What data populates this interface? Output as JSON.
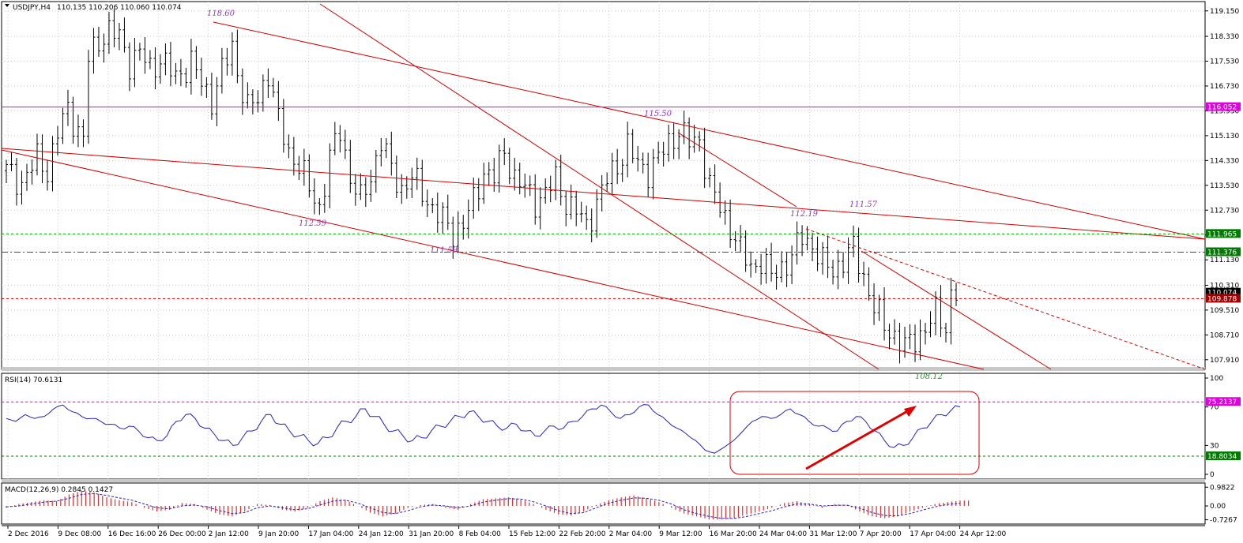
{
  "title": {
    "symbol": "USDJPY,H4",
    "ohlc": "110.135 110.206 110.060 110.074"
  },
  "colors": {
    "bar": "#000000",
    "channel": "#d40000",
    "magenta": "#e100e1",
    "green_dash": "#00a000",
    "red_dash": "#c00000",
    "rsi": "#2222c0",
    "macd_hist": "#e03030",
    "signal": "#2222c0",
    "annotation": "#9932cc"
  },
  "chart_data": [
    {
      "type": "line",
      "title": "USDJPY,H4",
      "ylim": [
        107.6,
        119.45
      ],
      "yticks": [
        "119.150",
        "118.330",
        "117.530",
        "116.730",
        "115.930",
        "115.130",
        "114.330",
        "113.530",
        "112.730",
        "111.930",
        "111.130",
        "110.310",
        "109.510",
        "108.710",
        "107.910"
      ],
      "xticks": [
        "2 Dec 2016",
        "9 Dec 08:00",
        "16 Dec 16:00",
        "26 Dec 00:00",
        "2 Jan 12:00",
        "9 Jan 20:00",
        "17 Jan 04:00",
        "24 Jan 12:00",
        "31 Jan 20:00",
        "8 Feb 04:00",
        "15 Feb 12:00",
        "22 Feb 20:00",
        "2 Mar 04:00",
        "9 Mar 12:00",
        "16 Mar 20:00",
        "24 Mar 04:00",
        "31 Mar 12:00",
        "7 Apr 20:00",
        "17 Apr 04:00",
        "24 Apr 12:00"
      ],
      "close_path": [
        [
          0,
          114.0
        ],
        [
          3,
          113.6
        ],
        [
          6,
          114.4
        ],
        [
          8,
          114.0
        ],
        [
          10,
          115.2
        ],
        [
          12,
          116.0
        ],
        [
          14,
          115.3
        ],
        [
          15,
          115.0
        ],
        [
          16,
          117.6
        ],
        [
          18,
          118.2
        ],
        [
          20,
          118.5
        ],
        [
          22,
          118.3
        ],
        [
          24,
          117.5
        ],
        [
          26,
          117.8
        ],
        [
          28,
          117.3
        ],
        [
          30,
          117.6
        ],
        [
          33,
          117.0
        ],
        [
          36,
          117.5
        ],
        [
          38,
          116.8
        ],
        [
          40,
          116.3
        ],
        [
          42,
          117.2
        ],
        [
          44,
          118.0
        ],
        [
          45,
          117.2
        ],
        [
          47,
          116.0
        ],
        [
          49,
          116.3
        ],
        [
          51,
          117.2
        ],
        [
          53,
          115.6
        ],
        [
          55,
          114.6
        ],
        [
          57,
          114.2
        ],
        [
          59,
          113.4
        ],
        [
          61,
          112.8
        ],
        [
          63,
          114.4
        ],
        [
          65,
          115.3
        ],
        [
          67,
          113.8
        ],
        [
          69,
          113.0
        ],
        [
          71,
          113.8
        ],
        [
          73,
          115.0
        ],
        [
          75,
          114.0
        ],
        [
          77,
          113.4
        ],
        [
          79,
          113.8
        ],
        [
          81,
          113.3
        ],
        [
          83,
          112.8
        ],
        [
          85,
          112.4
        ],
        [
          87,
          112.0
        ],
        [
          89,
          112.3
        ],
        [
          91,
          113.0
        ],
        [
          93,
          114.0
        ],
        [
          95,
          113.8
        ],
        [
          97,
          114.6
        ],
        [
          99,
          113.8
        ],
        [
          101,
          113.4
        ],
        [
          103,
          113.0
        ],
        [
          105,
          113.3
        ],
        [
          107,
          113.7
        ],
        [
          109,
          113.0
        ],
        [
          111,
          112.7
        ],
        [
          113,
          112.2
        ],
        [
          115,
          113.0
        ],
        [
          117,
          113.7
        ],
        [
          119,
          114.2
        ],
        [
          121,
          114.8
        ],
        [
          123,
          114.2
        ],
        [
          125,
          114.0
        ],
        [
          127,
          114.4
        ],
        [
          129,
          114.9
        ],
        [
          131,
          115.3
        ],
        [
          133,
          114.9
        ],
        [
          135,
          115.0
        ],
        [
          137,
          113.5
        ],
        [
          139,
          112.8
        ],
        [
          141,
          112.2
        ],
        [
          143,
          111.4
        ],
        [
          145,
          110.9
        ],
        [
          147,
          111.1
        ],
        [
          149,
          110.6
        ],
        [
          151,
          110.9
        ],
        [
          153,
          111.2
        ],
        [
          155,
          111.9
        ],
        [
          157,
          111.6
        ],
        [
          159,
          111.0
        ],
        [
          161,
          110.8
        ],
        [
          163,
          111.1
        ],
        [
          165,
          111.5
        ],
        [
          167,
          110.6
        ],
        [
          169,
          109.6
        ],
        [
          171,
          109.0
        ],
        [
          173,
          108.7
        ],
        [
          175,
          108.3
        ],
        [
          177,
          108.6
        ],
        [
          179,
          108.9
        ],
        [
          181,
          109.4
        ],
        [
          183,
          109.0
        ],
        [
          184,
          110.0
        ],
        [
          185,
          110.07
        ]
      ],
      "last_bar_index": 185,
      "levels": [
        {
          "label": "116.052",
          "value": 116.052
        },
        {
          "label": "111.965",
          "value": 111.965
        },
        {
          "label": "111.376",
          "value": 111.376
        },
        {
          "label": "110.074",
          "value": 110.074
        },
        {
          "label": "109.878",
          "value": 109.878
        }
      ],
      "annotations": [
        "118.60",
        "115.50",
        "112.59",
        "111.59",
        "112.19",
        "111.57",
        "108.12"
      ]
    },
    {
      "type": "line",
      "title": "RSI(14) 70.6131",
      "ylim": [
        0,
        100
      ],
      "yticks": [
        "100",
        "70",
        "30",
        "0"
      ],
      "levels": [
        {
          "label": "75.2137",
          "value": 75.2137
        },
        {
          "label": "18.8034",
          "value": 18.8034
        }
      ],
      "series": [
        {
          "values": [
            58,
            55,
            62,
            58,
            60,
            68,
            72,
            65,
            60,
            58,
            55,
            52,
            48,
            50,
            45,
            38,
            35,
            40,
            55,
            62,
            58,
            48,
            42,
            35,
            30,
            38,
            45,
            55,
            62,
            52,
            45,
            40,
            35,
            32,
            38,
            48,
            55,
            60,
            68,
            60,
            52,
            45,
            40,
            35,
            38,
            45,
            50,
            55,
            60,
            65,
            60,
            55,
            50,
            48,
            52,
            45,
            40,
            45,
            50,
            48,
            55,
            60,
            68,
            72,
            65,
            58,
            62,
            70,
            72,
            62,
            55,
            48,
            42,
            35,
            25,
            22,
            28,
            35,
            45,
            55,
            60,
            58,
            62,
            68,
            62,
            55,
            50,
            48,
            45,
            55,
            60,
            55,
            45,
            35,
            28,
            30,
            38,
            48,
            55,
            62,
            66,
            70
          ]
        }
      ]
    },
    {
      "type": "bar",
      "title": "MACD(12,26,9) 0.2845 0.1427",
      "ylim": [
        -0.95,
        1.2
      ],
      "yticks": [
        "0.9822",
        "0.00",
        "-0.7267"
      ],
      "series": [
        {
          "name": "MACD",
          "values": [
            -0.1,
            0.1,
            0.2,
            0.3,
            0.25,
            0.6,
            0.8,
            0.7,
            0.45,
            0.3,
            0.2,
            -0.1,
            -0.3,
            -0.2,
            0.15,
            0.1,
            -0.2,
            -0.45,
            -0.55,
            -0.3,
            0.1,
            0.05,
            -0.2,
            -0.3,
            -0.1,
            0.25,
            0.45,
            0.3,
            0.0,
            -0.35,
            -0.55,
            -0.4,
            -0.1,
            0.05,
            0.1,
            -0.1,
            -0.2,
            0.1,
            0.35,
            0.4,
            0.45,
            0.35,
            0.1,
            -0.2,
            -0.45,
            -0.5,
            -0.3,
            0.05,
            0.3,
            0.45,
            0.55,
            0.4,
            0.2,
            -0.1,
            -0.4,
            -0.55,
            -0.7,
            -0.72,
            -0.65,
            -0.45,
            -0.3,
            -0.1,
            0.15,
            0.25,
            0.1,
            -0.1,
            0.1,
            0.05,
            -0.3,
            -0.55,
            -0.65,
            -0.55,
            -0.3,
            -0.1,
            0.1,
            0.2,
            0.28
          ]
        },
        {
          "name": "Signal",
          "values": [
            -0.05,
            0.0,
            0.1,
            0.2,
            0.25,
            0.4,
            0.6,
            0.65,
            0.55,
            0.42,
            0.3,
            0.1,
            -0.1,
            -0.15,
            0.0,
            0.05,
            -0.05,
            -0.25,
            -0.4,
            -0.35,
            -0.1,
            0.0,
            -0.1,
            -0.2,
            -0.15,
            0.05,
            0.25,
            0.3,
            0.15,
            -0.1,
            -0.35,
            -0.4,
            -0.25,
            -0.05,
            0.05,
            0.0,
            -0.1,
            0.0,
            0.2,
            0.3,
            0.38,
            0.36,
            0.22,
            0.0,
            -0.25,
            -0.4,
            -0.35,
            -0.1,
            0.15,
            0.3,
            0.42,
            0.4,
            0.3,
            0.1,
            -0.2,
            -0.4,
            -0.55,
            -0.65,
            -0.66,
            -0.55,
            -0.4,
            -0.25,
            -0.05,
            0.1,
            0.1,
            0.0,
            0.03,
            0.04,
            -0.12,
            -0.35,
            -0.5,
            -0.52,
            -0.4,
            -0.22,
            -0.05,
            0.08,
            0.14
          ]
        }
      ]
    }
  ]
}
